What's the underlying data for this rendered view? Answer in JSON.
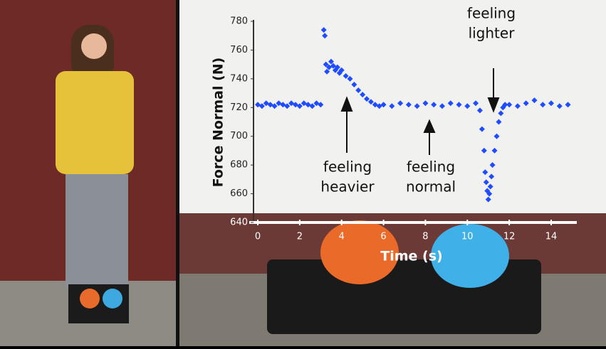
{
  "chart_data": {
    "type": "scatter",
    "x_label": "Time (s)",
    "y_label": "Force Normal (N)",
    "annotations": [
      [
        "feeling",
        "heavier"
      ],
      [
        "feeling",
        "normal"
      ],
      [
        "feeling",
        "lighter"
      ]
    ],
    "series": [
      {
        "color": "#1f4cff",
        "x": [
          0,
          0.2,
          0.4,
          0.6,
          0.8,
          1.0,
          1.2,
          1.4,
          1.6,
          1.8,
          2.0,
          2.2,
          2.4,
          2.6,
          2.8,
          3.0,
          3.15,
          3.2,
          3.25,
          3.3,
          3.4,
          3.5,
          3.6,
          3.7,
          3.8,
          3.9,
          4.0,
          4.2,
          4.4,
          4.6,
          4.8,
          5.0,
          5.2,
          5.4,
          5.6,
          5.8,
          6.0,
          6.4,
          6.8,
          7.2,
          7.6,
          8.0,
          8.4,
          8.8,
          9.2,
          9.6,
          10.0,
          10.4,
          10.6,
          10.7,
          10.8,
          10.85,
          10.9,
          10.95,
          11.0,
          11.05,
          11.1,
          11.15,
          11.2,
          11.3,
          11.4,
          11.5,
          11.6,
          11.7,
          11.8,
          12.0,
          12.4,
          12.8,
          13.2,
          13.6,
          14.0,
          14.4,
          14.8
        ],
        "values": [
          722,
          721,
          723,
          722,
          721,
          723,
          722,
          721,
          723,
          722,
          721,
          723,
          722,
          721,
          723,
          722,
          774,
          770,
          750,
          745,
          748,
          752,
          749,
          746,
          748,
          744,
          746,
          742,
          740,
          736,
          732,
          729,
          726,
          724,
          722,
          721,
          722,
          721,
          723,
          722,
          721,
          723,
          722,
          721,
          723,
          722,
          721,
          723,
          718,
          705,
          690,
          675,
          668,
          662,
          656,
          660,
          665,
          672,
          680,
          690,
          700,
          710,
          716,
          720,
          722,
          722,
          721,
          723,
          725,
          722,
          723,
          721,
          722
        ]
      }
    ],
    "xlim": [
      0,
      15
    ],
    "ylim": [
      640,
      780
    ],
    "xticks": [
      0,
      2,
      4,
      6,
      8,
      10,
      12,
      14
    ],
    "yticks": [
      640,
      660,
      680,
      700,
      720,
      740,
      760,
      780
    ]
  }
}
